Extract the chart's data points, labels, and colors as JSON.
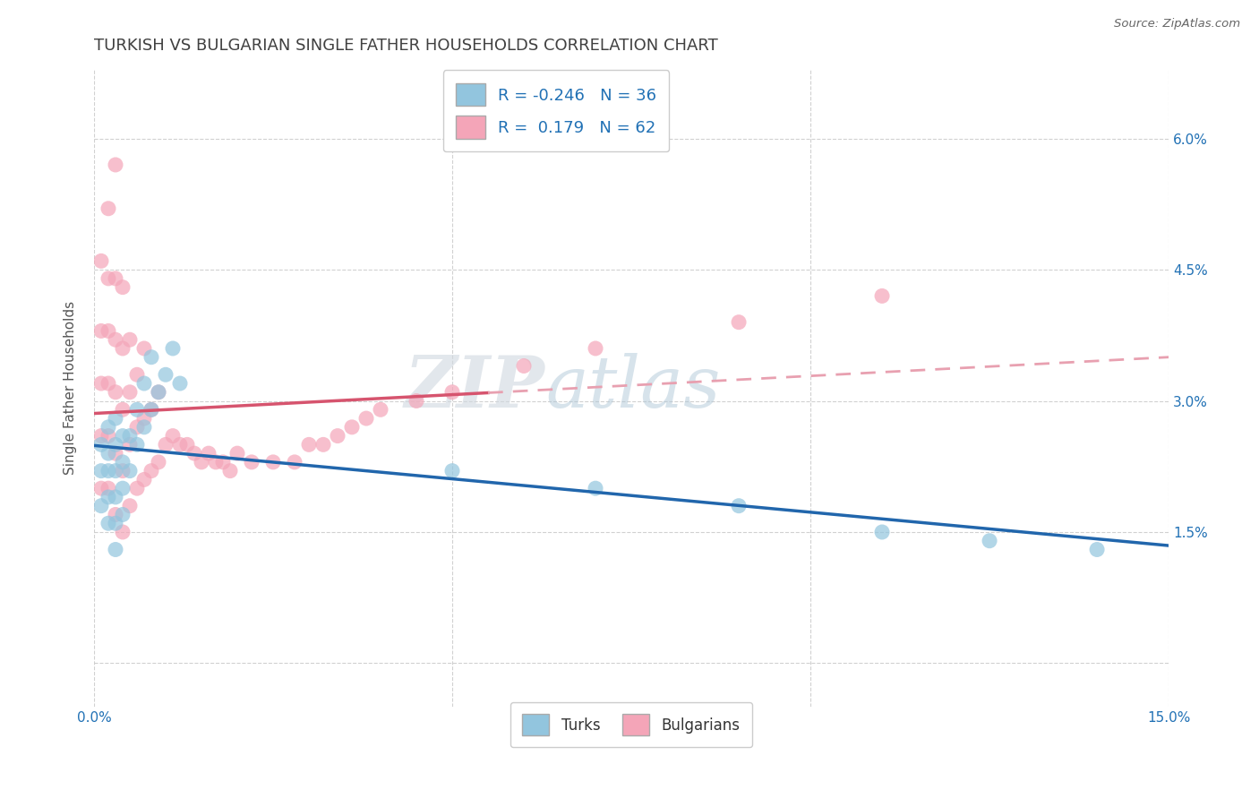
{
  "title": "TURKISH VS BULGARIAN SINGLE FATHER HOUSEHOLDS CORRELATION CHART",
  "source": "Source: ZipAtlas.com",
  "ylabel": "Single Father Households",
  "xlim": [
    0.0,
    0.15
  ],
  "ylim": [
    -0.005,
    0.068
  ],
  "blue_color": "#92c5de",
  "pink_color": "#f4a5b8",
  "blue_line_color": "#2166ac",
  "pink_line_color": "#d6546e",
  "pink_dash_color": "#e8a0b0",
  "watermark_zip": "ZIP",
  "watermark_atlas": "atlas",
  "legend_R_blue": "R = -0.246",
  "legend_N_blue": "N = 36",
  "legend_R_pink": "R =  0.179",
  "legend_N_pink": "N = 62",
  "turks_x": [
    0.001,
    0.001,
    0.001,
    0.002,
    0.002,
    0.002,
    0.002,
    0.002,
    0.003,
    0.003,
    0.003,
    0.003,
    0.003,
    0.003,
    0.004,
    0.004,
    0.004,
    0.004,
    0.005,
    0.005,
    0.006,
    0.006,
    0.007,
    0.007,
    0.008,
    0.008,
    0.009,
    0.01,
    0.011,
    0.012,
    0.05,
    0.07,
    0.09,
    0.11,
    0.125,
    0.14
  ],
  "turks_y": [
    0.025,
    0.022,
    0.018,
    0.027,
    0.024,
    0.022,
    0.019,
    0.016,
    0.028,
    0.025,
    0.022,
    0.019,
    0.016,
    0.013,
    0.026,
    0.023,
    0.02,
    0.017,
    0.026,
    0.022,
    0.029,
    0.025,
    0.032,
    0.027,
    0.035,
    0.029,
    0.031,
    0.033,
    0.036,
    0.032,
    0.022,
    0.02,
    0.018,
    0.015,
    0.014,
    0.013
  ],
  "bulgarians_x": [
    0.001,
    0.001,
    0.001,
    0.001,
    0.001,
    0.002,
    0.002,
    0.002,
    0.002,
    0.002,
    0.002,
    0.003,
    0.003,
    0.003,
    0.003,
    0.003,
    0.003,
    0.004,
    0.004,
    0.004,
    0.004,
    0.004,
    0.005,
    0.005,
    0.005,
    0.005,
    0.006,
    0.006,
    0.006,
    0.007,
    0.007,
    0.007,
    0.008,
    0.008,
    0.009,
    0.009,
    0.01,
    0.011,
    0.012,
    0.013,
    0.014,
    0.015,
    0.016,
    0.017,
    0.018,
    0.019,
    0.02,
    0.022,
    0.025,
    0.028,
    0.03,
    0.032,
    0.034,
    0.036,
    0.038,
    0.04,
    0.045,
    0.05,
    0.06,
    0.07,
    0.09,
    0.11
  ],
  "bulgarians_y": [
    0.046,
    0.038,
    0.032,
    0.026,
    0.02,
    0.052,
    0.044,
    0.038,
    0.032,
    0.026,
    0.02,
    0.057,
    0.044,
    0.037,
    0.031,
    0.024,
    0.017,
    0.043,
    0.036,
    0.029,
    0.022,
    0.015,
    0.037,
    0.031,
    0.025,
    0.018,
    0.033,
    0.027,
    0.02,
    0.036,
    0.028,
    0.021,
    0.029,
    0.022,
    0.031,
    0.023,
    0.025,
    0.026,
    0.025,
    0.025,
    0.024,
    0.023,
    0.024,
    0.023,
    0.023,
    0.022,
    0.024,
    0.023,
    0.023,
    0.023,
    0.025,
    0.025,
    0.026,
    0.027,
    0.028,
    0.029,
    0.03,
    0.031,
    0.034,
    0.036,
    0.039,
    0.042
  ],
  "ytick_vals": [
    0.0,
    0.015,
    0.03,
    0.045,
    0.06
  ],
  "ytick_labels": [
    "",
    "1.5%",
    "3.0%",
    "4.5%",
    "6.0%"
  ],
  "xtick_vals": [
    0.0,
    0.05,
    0.1,
    0.15
  ],
  "xtick_labels": [
    "0.0%",
    "",
    "",
    "15.0%"
  ],
  "grid_color": "#cccccc",
  "background_color": "#ffffff",
  "title_color": "#404040",
  "axis_label_color": "#2171b5",
  "tick_color": "#2171b5",
  "title_fontsize": 13,
  "label_fontsize": 11,
  "tick_fontsize": 11,
  "source_text": "Source: ZipAtlas.com"
}
